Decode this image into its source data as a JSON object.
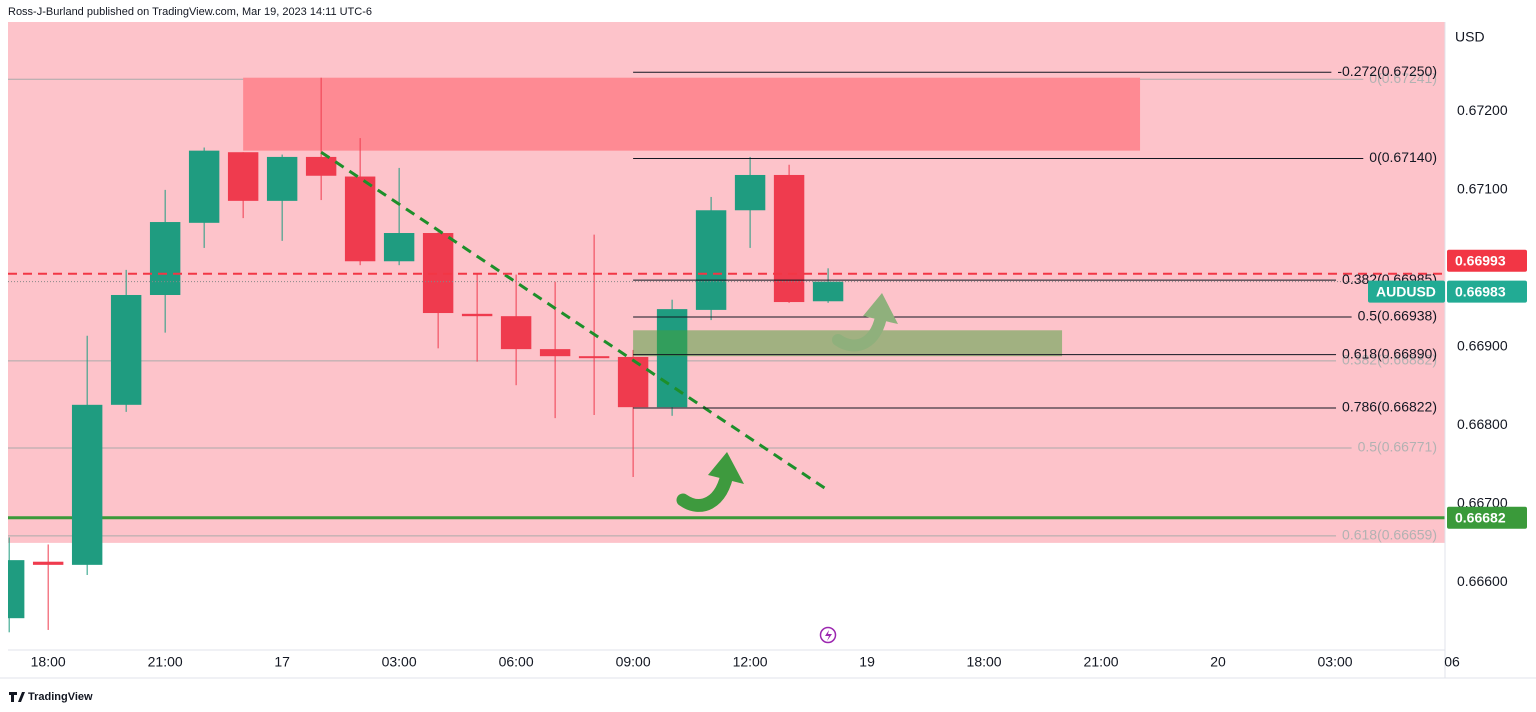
{
  "chart_data": {
    "type": "candlestick",
    "header": "Ross-J-Burland published on TradingView.com, Mar 19, 2023 14:11 UTC-6",
    "currency": "USD",
    "symbol": "AUDUSD",
    "footer": "TradingView",
    "x": [
      0,
      1,
      2,
      3,
      4,
      5,
      6,
      7,
      8,
      9,
      10,
      11,
      12,
      13,
      14,
      15,
      16,
      17,
      18,
      19,
      20,
      21
    ],
    "open": [
      0.66554,
      0.66626,
      0.66622,
      0.66826,
      0.66966,
      0.67058,
      0.67148,
      0.67086,
      0.67142,
      0.67117,
      0.67009,
      0.67045,
      0.66942,
      0.66939,
      0.66897,
      0.66888,
      0.66887,
      0.66823,
      0.66947,
      0.67074,
      0.67119,
      0.66958
    ],
    "high": [
      0.66657,
      0.66648,
      0.66914,
      0.66998,
      0.671,
      0.67154,
      0.67148,
      0.67145,
      0.67243,
      0.67166,
      0.67128,
      0.67046,
      0.66994,
      0.66992,
      0.66983,
      0.67043,
      0.66896,
      0.6696,
      0.67091,
      0.67142,
      0.67132,
      0.67
    ],
    "low": [
      0.66536,
      0.66539,
      0.66609,
      0.66817,
      0.66918,
      0.67026,
      0.67064,
      0.67035,
      0.67087,
      0.67004,
      0.67004,
      0.66898,
      0.66881,
      0.66851,
      0.66809,
      0.66813,
      0.66734,
      0.66812,
      0.66934,
      0.67026,
      0.66956,
      0.66956
    ],
    "close": [
      0.66628,
      0.66622,
      0.66826,
      0.66966,
      0.67059,
      0.6715,
      0.67086,
      0.67142,
      0.67118,
      0.67009,
      0.67045,
      0.66943,
      0.66939,
      0.66897,
      0.66888,
      0.66887,
      0.66823,
      0.66948,
      0.67074,
      0.67119,
      0.66957,
      0.66983
    ],
    "up_color": "#1f9c80",
    "down_color": "#ef3b4e",
    "xlim": [
      -0.03,
      36.82
    ],
    "ylim": [
      0.66516,
      0.67314
    ],
    "xticks": [
      {
        "value": 1,
        "label": "18:00"
      },
      {
        "value": 4,
        "label": "21:00"
      },
      {
        "value": 7,
        "label": "17"
      },
      {
        "value": 10,
        "label": "03:00"
      },
      {
        "value": 13,
        "label": "06:00"
      },
      {
        "value": 16,
        "label": "09:00"
      },
      {
        "value": 19,
        "label": "12:00"
      },
      {
        "value": 22,
        "label": "19"
      },
      {
        "value": 25,
        "label": "18:00"
      },
      {
        "value": 28,
        "label": "21:00"
      },
      {
        "value": 31,
        "label": "20"
      },
      {
        "value": 34,
        "label": "03:00"
      },
      {
        "value": 37,
        "label": "06"
      }
    ],
    "yticks": [
      {
        "value": 0.666,
        "label": "0.66600"
      },
      {
        "value": 0.667,
        "label": "0.66700"
      },
      {
        "value": 0.668,
        "label": "0.66800"
      },
      {
        "value": 0.669,
        "label": "0.66900"
      },
      {
        "value": 0.671,
        "label": "0.67100"
      },
      {
        "value": 0.672,
        "label": "0.67200"
      }
    ],
    "background_zone": {
      "x": [
        -0.03,
        36.82
      ],
      "y": [
        0.67314,
        0.6665
      ],
      "color": "#fdc3ca"
    },
    "resistance_zone": {
      "x": [
        6,
        29
      ],
      "y": [
        0.67243,
        0.6715
      ],
      "color": "#fe8a93"
    },
    "support_zone": {
      "x": [
        16,
        27
      ],
      "y": [
        0.66921,
        0.66888
      ],
      "color": "rgba(70,160,55,0.5)"
    },
    "trendline": {
      "x": [
        8,
        21
      ],
      "y": [
        0.67148,
        0.66717
      ],
      "color": "#1d8f2a"
    },
    "support_line": {
      "value": 0.66682,
      "color": "#3a9a3a"
    },
    "prev_close": {
      "value": 0.66993,
      "color": "#f23645"
    },
    "last_price": {
      "value": 0.66983,
      "color": "#22ab94"
    },
    "fib_main": [
      {
        "value": 0.6725,
        "label": "-0.272(0.67250)"
      },
      {
        "value": 0.6714,
        "label": "0(0.67140)"
      },
      {
        "value": 0.66985,
        "label": "0.382(0.66985)"
      },
      {
        "value": 0.66938,
        "label": "0.5(0.66938)"
      },
      {
        "value": 0.6689,
        "label": "0.618(0.66890)"
      },
      {
        "value": 0.66822,
        "label": "0.786(0.66822)"
      }
    ],
    "fib_faded": [
      {
        "value": 0.67241,
        "label": "0(0.67241)"
      },
      {
        "value": 0.66882,
        "label": "0.382(0.66882)"
      },
      {
        "value": 0.66771,
        "label": "0.5(0.66771)"
      },
      {
        "value": 0.66659,
        "label": "0.618(0.66659)"
      }
    ]
  }
}
